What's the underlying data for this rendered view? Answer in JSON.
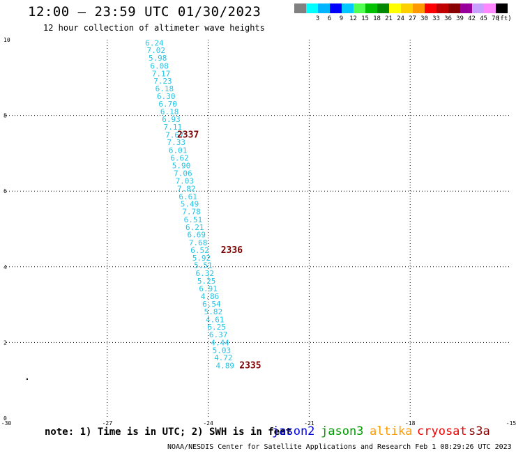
{
  "header": {
    "title": "12:00 – 23:59 UTC 01/30/2023",
    "subtitle": "12 hour collection of altimeter wave heights"
  },
  "color_scale": {
    "unit": "(ft)",
    "swatches": [
      {
        "label": "",
        "color": "#808080"
      },
      {
        "label": "3",
        "color": "#00ffff"
      },
      {
        "label": "6",
        "color": "#00b4ff"
      },
      {
        "label": "9",
        "color": "#0000ff"
      },
      {
        "label": "12",
        "color": "#00c8ff"
      },
      {
        "label": "15",
        "color": "#50ff50"
      },
      {
        "label": "18",
        "color": "#00c000"
      },
      {
        "label": "21",
        "color": "#008800"
      },
      {
        "label": "24",
        "color": "#ffff00"
      },
      {
        "label": "27",
        "color": "#ffd000"
      },
      {
        "label": "30",
        "color": "#ff9900"
      },
      {
        "label": "33",
        "color": "#ff0000"
      },
      {
        "label": "36",
        "color": "#c00000"
      },
      {
        "label": "39",
        "color": "#880000"
      },
      {
        "label": "42",
        "color": "#990099"
      },
      {
        "label": "45",
        "color": "#c8a0ff"
      },
      {
        "label": "70",
        "color": "#ff88ff"
      },
      {
        "label": "",
        "color": "#000000"
      }
    ]
  },
  "chart_data": {
    "type": "scatter",
    "xlim": [
      -30,
      -15
    ],
    "ylim": [
      0,
      10
    ],
    "xticks": [
      "-30",
      "-27",
      "-24",
      "-21",
      "-18",
      "-15"
    ],
    "yticks": [
      "0",
      "2",
      "4",
      "6",
      "8",
      "10"
    ],
    "grid": true,
    "point_color": "#22c4e6",
    "label_color": "#7a0000",
    "points": [
      {
        "x": -25.6,
        "y": 9.92,
        "label": "6.24"
      },
      {
        "x": -25.55,
        "y": 9.72,
        "label": "7.02"
      },
      {
        "x": -25.5,
        "y": 9.52,
        "label": "5.98"
      },
      {
        "x": -25.45,
        "y": 9.31,
        "label": "6.08"
      },
      {
        "x": -25.4,
        "y": 9.11,
        "label": "7.17"
      },
      {
        "x": -25.35,
        "y": 8.91,
        "label": "7.23"
      },
      {
        "x": -25.3,
        "y": 8.71,
        "label": "6.18"
      },
      {
        "x": -25.25,
        "y": 8.51,
        "label": "6.30"
      },
      {
        "x": -25.2,
        "y": 8.31,
        "label": "6.70"
      },
      {
        "x": -25.15,
        "y": 8.1,
        "label": "6.18"
      },
      {
        "x": -25.1,
        "y": 7.9,
        "label": "6.93"
      },
      {
        "x": -25.05,
        "y": 7.7,
        "label": "7.11"
      },
      {
        "x": -25.0,
        "y": 7.49,
        "label": "7.67"
      },
      {
        "x": -24.95,
        "y": 7.29,
        "label": "7.33"
      },
      {
        "x": -24.9,
        "y": 7.08,
        "label": "6.01"
      },
      {
        "x": -24.85,
        "y": 6.88,
        "label": "6.62"
      },
      {
        "x": -24.8,
        "y": 6.68,
        "label": "5.90"
      },
      {
        "x": -24.75,
        "y": 6.47,
        "label": "7.06"
      },
      {
        "x": -24.7,
        "y": 6.27,
        "label": "7.03"
      },
      {
        "x": -24.65,
        "y": 6.07,
        "label": "7.82"
      },
      {
        "x": -24.6,
        "y": 5.86,
        "label": "6.61"
      },
      {
        "x": -24.55,
        "y": 5.66,
        "label": "5.49"
      },
      {
        "x": -24.5,
        "y": 5.46,
        "label": "7.78"
      },
      {
        "x": -24.45,
        "y": 5.25,
        "label": "6.51"
      },
      {
        "x": -24.4,
        "y": 5.05,
        "label": "6.21"
      },
      {
        "x": -24.35,
        "y": 4.85,
        "label": "6.69"
      },
      {
        "x": -24.3,
        "y": 4.64,
        "label": "7.68"
      },
      {
        "x": -24.25,
        "y": 4.44,
        "label": "6.52"
      },
      {
        "x": -24.2,
        "y": 4.24,
        "label": "5.92"
      },
      {
        "x": -24.15,
        "y": 4.04,
        "label": "5.51"
      },
      {
        "x": -24.1,
        "y": 3.83,
        "label": "6.32"
      },
      {
        "x": -24.05,
        "y": 3.63,
        "label": "5.25"
      },
      {
        "x": -24.0,
        "y": 3.43,
        "label": "6.91"
      },
      {
        "x": -23.95,
        "y": 3.22,
        "label": "4.86"
      },
      {
        "x": -23.9,
        "y": 3.02,
        "label": "6.54"
      },
      {
        "x": -23.85,
        "y": 2.82,
        "label": "5.82"
      },
      {
        "x": -23.8,
        "y": 2.61,
        "label": "4.61"
      },
      {
        "x": -23.75,
        "y": 2.41,
        "label": "6.25"
      },
      {
        "x": -23.7,
        "y": 2.21,
        "label": "6.37"
      },
      {
        "x": -23.65,
        "y": 2.0,
        "label": "4.44"
      },
      {
        "x": -23.6,
        "y": 1.8,
        "label": "5.03"
      },
      {
        "x": -23.55,
        "y": 1.6,
        "label": "4.72"
      },
      {
        "x": -23.5,
        "y": 1.39,
        "label": "4.89"
      }
    ],
    "pass_labels": [
      {
        "x": -24.6,
        "y": 7.49,
        "label": "2337"
      },
      {
        "x": -23.3,
        "y": 4.44,
        "label": "2336"
      },
      {
        "x": -22.75,
        "y": 1.39,
        "label": "2335"
      }
    ],
    "stray_marks": [
      {
        "x": -29.4,
        "y": 1.05
      }
    ]
  },
  "footer": {
    "note": "note:  1) Time is in UTC;  2) SWH is in feet",
    "satellites": [
      {
        "name": "jason2",
        "color": "#0000dd"
      },
      {
        "name": "jason3",
        "color": "#009900"
      },
      {
        "name": "altika",
        "color": "#ff9900"
      },
      {
        "name": "cryosat",
        "color": "#ee0000"
      },
      {
        "name": "s3a",
        "color": "#880000"
      }
    ],
    "credit": "NOAA/NESDIS Center for Satellite Applications and Research    Feb  1 08:29:26 UTC 2023"
  }
}
